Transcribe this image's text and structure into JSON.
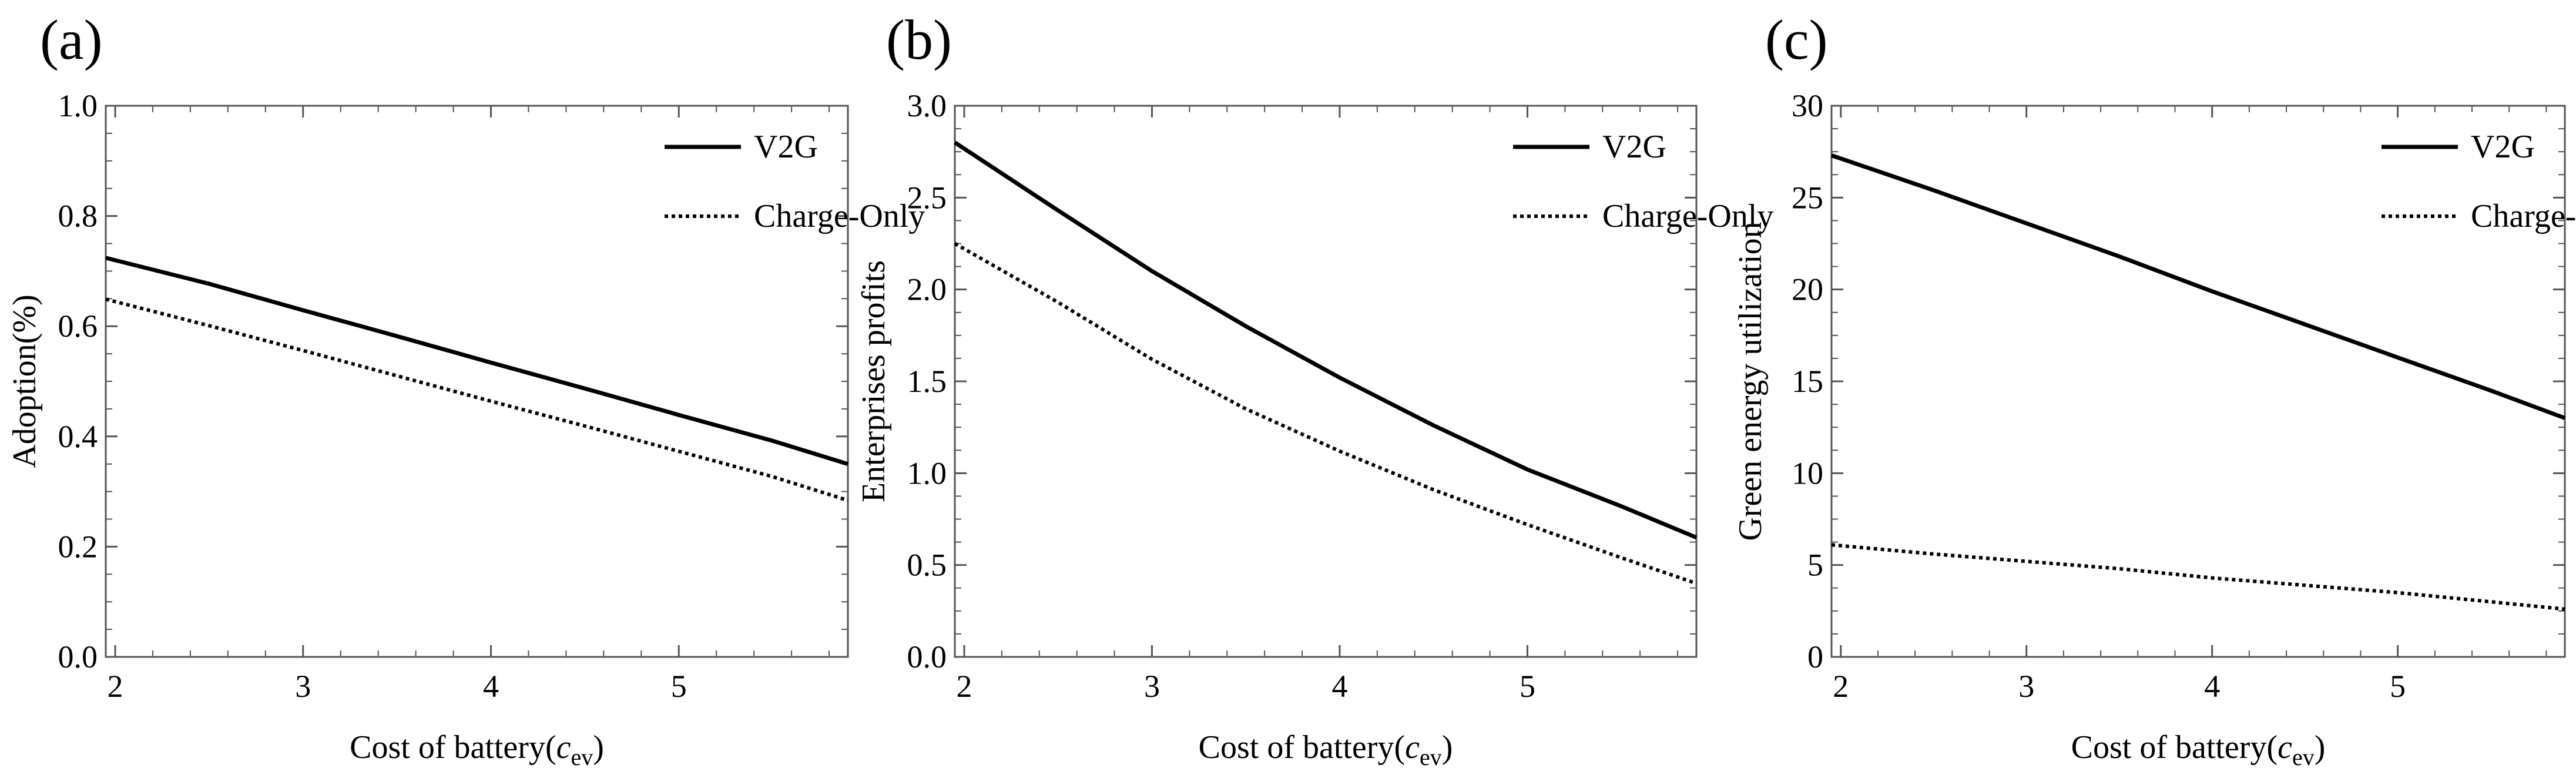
{
  "chart_data": [
    {
      "type": "line",
      "panel_label": "(a)",
      "xlabel_main": "Cost of battery(",
      "xlabel_var": "c",
      "xlabel_sub": "ev",
      "xlabel_close": ")",
      "ylabel": "Adoption(%)",
      "xlim": [
        1.95,
        5.9
      ],
      "ylim": [
        0.0,
        1.0
      ],
      "x_ticks": [
        2,
        3,
        4,
        5
      ],
      "x_tick_labels": [
        "2",
        "3",
        "4",
        "5"
      ],
      "y_ticks": [
        0.0,
        0.2,
        0.4,
        0.6,
        0.8,
        1.0
      ],
      "y_tick_labels": [
        "0.0",
        "0.2",
        "0.4",
        "0.6",
        "0.8",
        "1.0"
      ],
      "legend_position": "top-right",
      "series": [
        {
          "name": "V2G",
          "style": "solid",
          "x": [
            1.95,
            2.5,
            3.0,
            3.5,
            4.0,
            4.5,
            5.0,
            5.5,
            5.9
          ],
          "values": [
            0.724,
            0.677,
            0.629,
            0.582,
            0.534,
            0.487,
            0.439,
            0.392,
            0.35
          ]
        },
        {
          "name": "Charge-Only",
          "style": "dotted",
          "x": [
            1.95,
            2.5,
            3.0,
            3.5,
            4.0,
            4.5,
            5.0,
            5.5,
            5.9
          ],
          "values": [
            0.649,
            0.601,
            0.556,
            0.51,
            0.464,
            0.419,
            0.373,
            0.327,
            0.284
          ]
        }
      ]
    },
    {
      "type": "line",
      "panel_label": "(b)",
      "xlabel_main": "Cost of battery(",
      "xlabel_var": "c",
      "xlabel_sub": "ev",
      "xlabel_close": ")",
      "ylabel": "Enterprises profits",
      "xlim": [
        1.95,
        5.9
      ],
      "ylim": [
        0.0,
        3.0
      ],
      "x_ticks": [
        2,
        3,
        4,
        5
      ],
      "x_tick_labels": [
        "2",
        "3",
        "4",
        "5"
      ],
      "y_ticks": [
        0.0,
        0.5,
        1.0,
        1.5,
        2.0,
        2.5,
        3.0
      ],
      "y_tick_labels": [
        "0.0",
        "0.5",
        "1.0",
        "1.5",
        "2.0",
        "2.5",
        "3.0"
      ],
      "legend_position": "top-right",
      "series": [
        {
          "name": "V2G",
          "style": "solid",
          "x": [
            1.95,
            2.5,
            3.0,
            3.5,
            4.0,
            4.5,
            5.0,
            5.5,
            5.9
          ],
          "values": [
            2.8,
            2.43,
            2.1,
            1.8,
            1.52,
            1.26,
            1.02,
            0.82,
            0.65
          ]
        },
        {
          "name": "Charge-Only",
          "style": "dotted",
          "x": [
            1.95,
            2.5,
            3.0,
            3.5,
            4.0,
            4.5,
            5.0,
            5.5,
            5.9
          ],
          "values": [
            2.25,
            1.93,
            1.62,
            1.35,
            1.12,
            0.91,
            0.72,
            0.54,
            0.4
          ]
        }
      ]
    },
    {
      "type": "line",
      "panel_label": "(c)",
      "xlabel_main": "Cost of battery(",
      "xlabel_var": "c",
      "xlabel_sub": "ev",
      "xlabel_close": ")",
      "ylabel": "Green energy utilization",
      "xlim": [
        1.95,
        5.9
      ],
      "ylim": [
        0,
        30
      ],
      "x_ticks": [
        2,
        3,
        4,
        5
      ],
      "x_tick_labels": [
        "2",
        "3",
        "4",
        "5"
      ],
      "y_ticks": [
        0,
        5,
        10,
        15,
        20,
        25,
        30
      ],
      "y_tick_labels": [
        "0",
        "5",
        "10",
        "15",
        "20",
        "25",
        "30"
      ],
      "legend_position": "top-right",
      "series": [
        {
          "name": "V2G",
          "style": "solid",
          "x": [
            1.95,
            2.5,
            3.0,
            3.5,
            4.0,
            4.5,
            5.0,
            5.5,
            5.9
          ],
          "values": [
            27.3,
            25.4,
            23.6,
            21.8,
            19.9,
            18.1,
            16.3,
            14.5,
            13.0
          ]
        },
        {
          "name": "Charge-Only",
          "style": "dotted",
          "x": [
            1.95,
            2.5,
            3.0,
            3.5,
            4.0,
            4.5,
            5.0,
            5.5,
            5.9
          ],
          "values": [
            6.1,
            5.6,
            5.2,
            4.8,
            4.3,
            3.9,
            3.5,
            3.0,
            2.6
          ]
        }
      ]
    }
  ]
}
